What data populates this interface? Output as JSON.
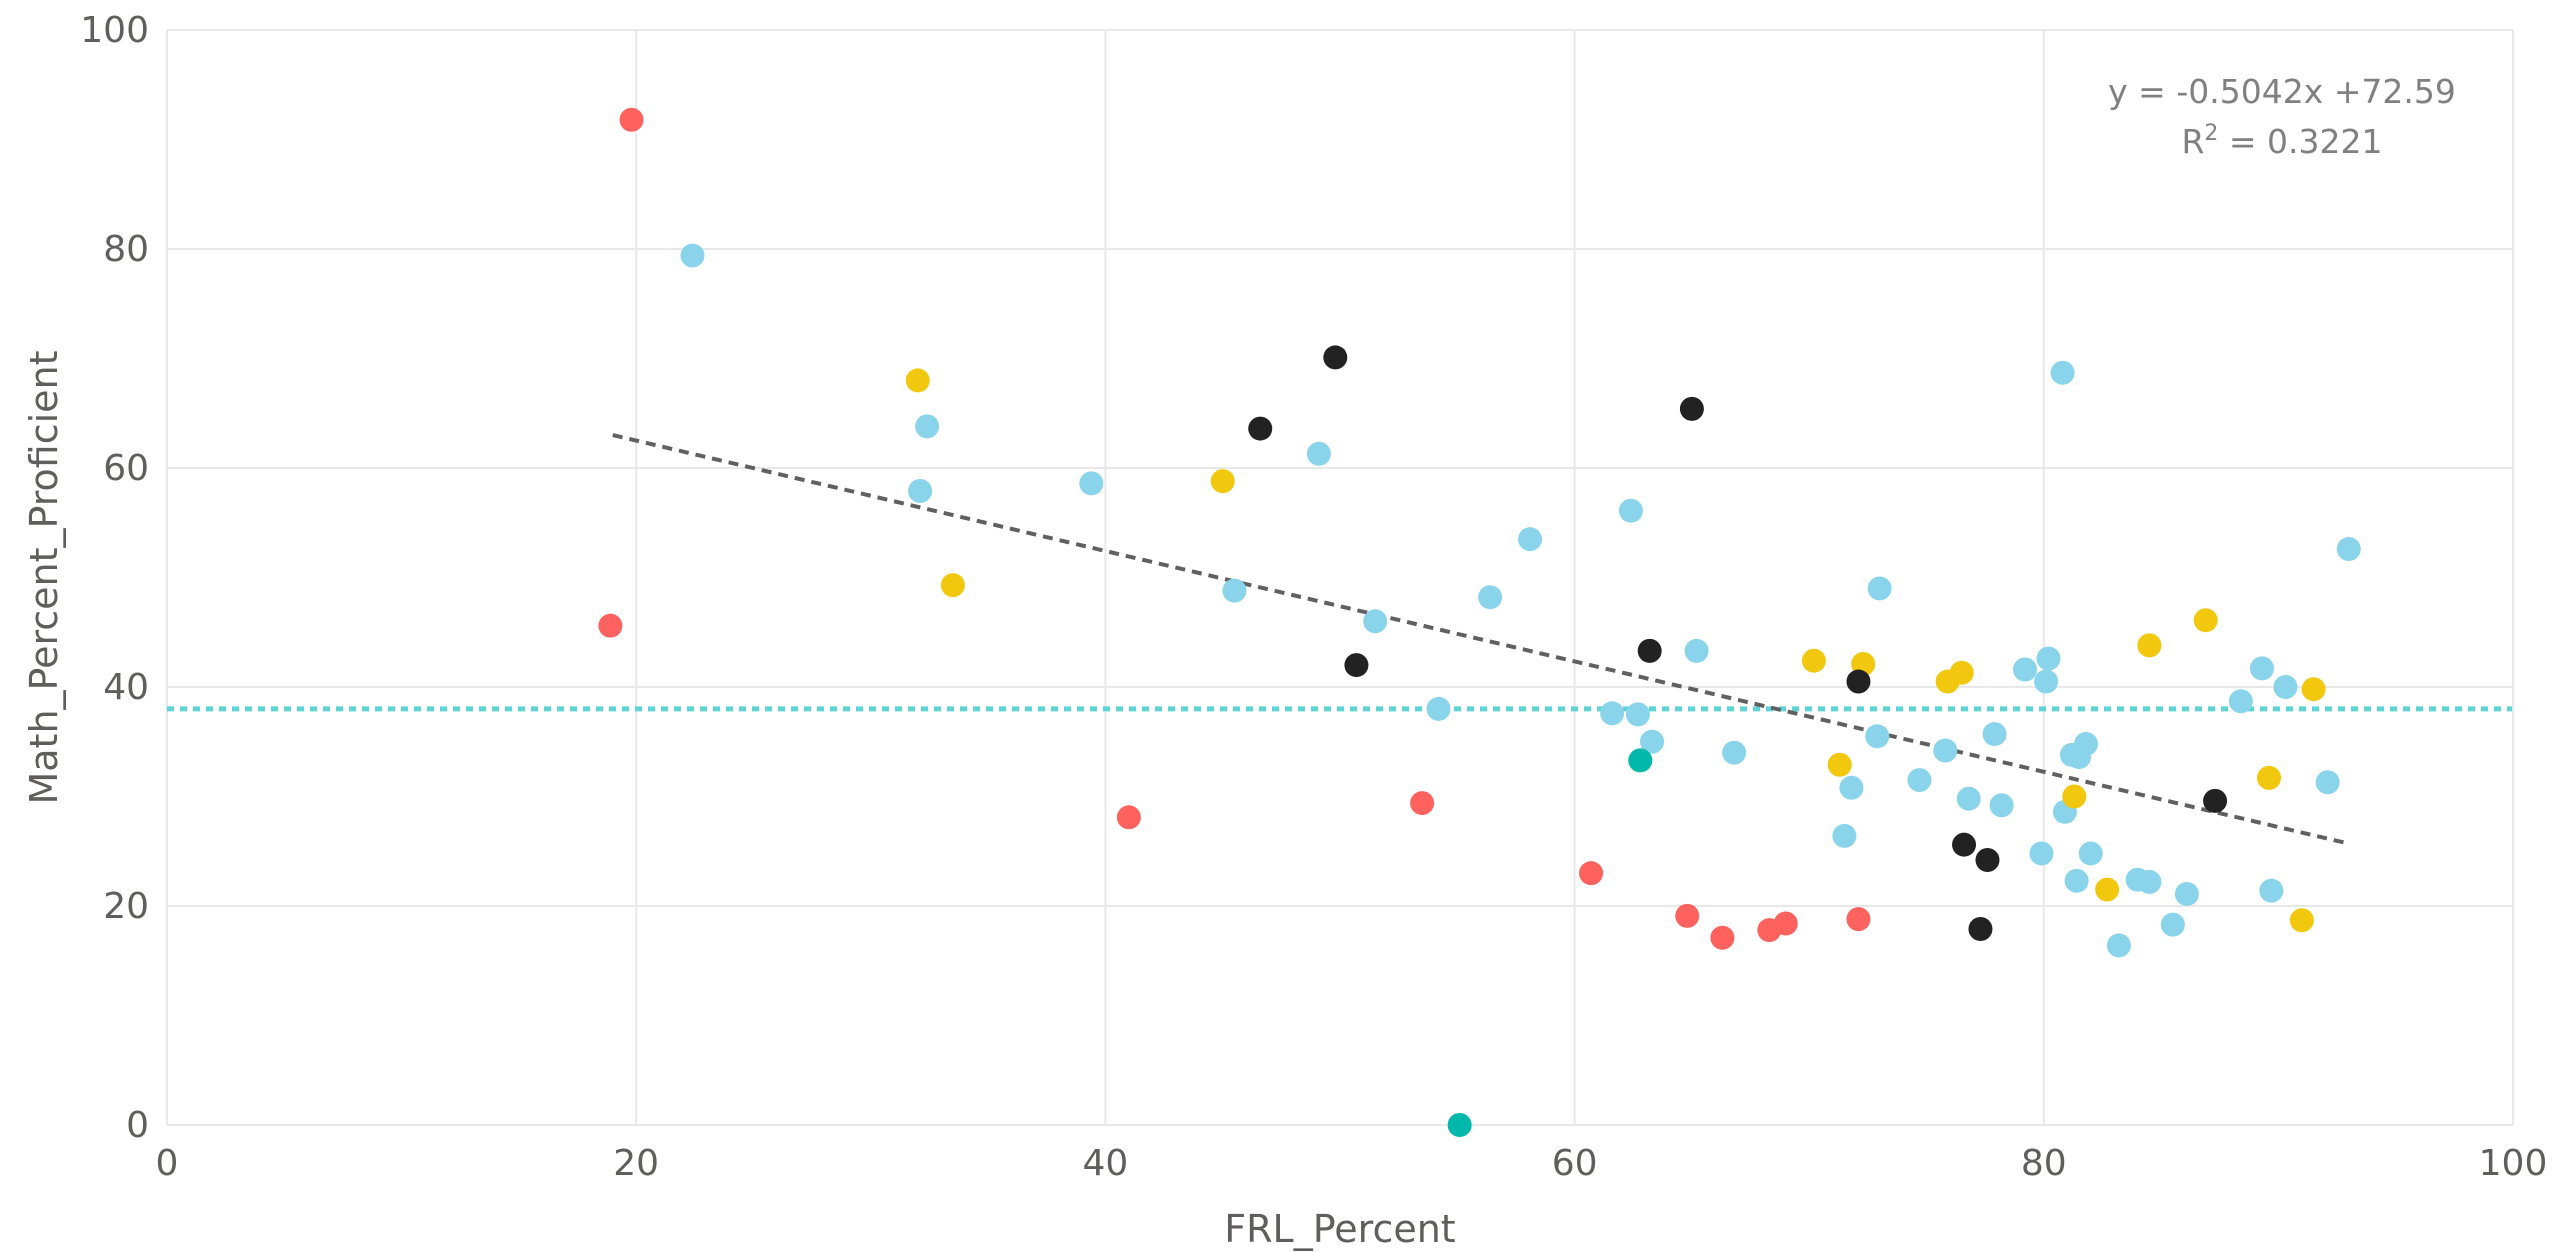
{
  "chart_data": {
    "type": "scatter",
    "xlabel": "FRL_Percent",
    "ylabel": "Math_Percent_Proficient",
    "xlim": [
      0,
      100
    ],
    "ylim": [
      0,
      100
    ],
    "xticks": [
      0,
      20,
      40,
      60,
      80,
      100
    ],
    "yticks": [
      0,
      20,
      40,
      60,
      80,
      100
    ],
    "grid": true,
    "colors": {
      "light_blue": "#8AD4EB",
      "yellow": "#F2C80F",
      "black": "#222222",
      "red": "#FD625E",
      "teal": "#01B8AA",
      "reference_line": "#5ED4D4",
      "trend_line": "#606060",
      "grid": "#E8E8E8"
    },
    "reference_line": {
      "y": 38,
      "style": "dotted"
    },
    "trend_line": {
      "slope": -0.5042,
      "intercept": 72.59,
      "x_range": [
        19,
        93
      ],
      "style": "dashed"
    },
    "annotation": {
      "equation": "y = -0.5042x +72.59",
      "r2_label": "R",
      "r2_sup": "2",
      "r2_value": " = 0.3221"
    },
    "series": [
      {
        "color": "light_blue",
        "points": [
          [
            22.4,
            79.4
          ],
          [
            32.4,
            63.8
          ],
          [
            32.1,
            57.9
          ],
          [
            39.4,
            58.6
          ],
          [
            45.5,
            48.8
          ],
          [
            49.1,
            61.3
          ],
          [
            51.5,
            46.0
          ],
          [
            54.2,
            38.0
          ],
          [
            56.4,
            48.2
          ],
          [
            58.1,
            53.5
          ],
          [
            62.4,
            56.1
          ],
          [
            61.6,
            37.6
          ],
          [
            62.7,
            37.5
          ],
          [
            63.3,
            35.0
          ],
          [
            65.2,
            43.3
          ],
          [
            66.8,
            34.0
          ],
          [
            71.5,
            26.4
          ],
          [
            71.8,
            30.8
          ],
          [
            72.9,
            35.5
          ],
          [
            73.0,
            49.0
          ],
          [
            74.7,
            31.5
          ],
          [
            75.8,
            34.2
          ],
          [
            76.8,
            29.8
          ],
          [
            77.9,
            35.7
          ],
          [
            78.2,
            29.2
          ],
          [
            79.2,
            41.6
          ],
          [
            79.9,
            24.8
          ],
          [
            80.1,
            40.5
          ],
          [
            80.2,
            42.6
          ],
          [
            80.8,
            68.7
          ],
          [
            80.9,
            28.6
          ],
          [
            81.2,
            33.8
          ],
          [
            81.5,
            33.6
          ],
          [
            81.4,
            22.3
          ],
          [
            81.8,
            34.8
          ],
          [
            82.0,
            24.8
          ],
          [
            83.2,
            16.4
          ],
          [
            84.0,
            22.4
          ],
          [
            84.5,
            22.2
          ],
          [
            85.5,
            18.3
          ],
          [
            86.1,
            21.1
          ],
          [
            88.4,
            38.7
          ],
          [
            89.3,
            41.7
          ],
          [
            89.7,
            21.4
          ],
          [
            90.3,
            40.0
          ],
          [
            92.1,
            31.3
          ],
          [
            93.0,
            52.6
          ]
        ]
      },
      {
        "color": "yellow",
        "points": [
          [
            32.0,
            68.0
          ],
          [
            33.5,
            49.3
          ],
          [
            45.0,
            58.8
          ],
          [
            70.2,
            42.4
          ],
          [
            71.3,
            32.9
          ],
          [
            72.3,
            42.1
          ],
          [
            75.9,
            40.5
          ],
          [
            76.5,
            41.3
          ],
          [
            81.3,
            30.0
          ],
          [
            82.7,
            21.5
          ],
          [
            84.5,
            43.8
          ],
          [
            86.9,
            46.1
          ],
          [
            89.6,
            31.7
          ],
          [
            91.0,
            18.7
          ],
          [
            91.5,
            39.8
          ]
        ]
      },
      {
        "color": "black",
        "points": [
          [
            46.6,
            63.6
          ],
          [
            49.8,
            70.1
          ],
          [
            50.7,
            42.0
          ],
          [
            63.2,
            43.3
          ],
          [
            65.0,
            65.4
          ],
          [
            72.1,
            40.5
          ],
          [
            76.6,
            25.6
          ],
          [
            77.6,
            24.2
          ],
          [
            77.3,
            17.9
          ],
          [
            87.3,
            29.6
          ]
        ]
      },
      {
        "color": "red",
        "points": [
          [
            19.8,
            91.8
          ],
          [
            18.9,
            45.6
          ],
          [
            41.0,
            28.1
          ],
          [
            53.5,
            29.4
          ],
          [
            60.7,
            23.0
          ],
          [
            64.8,
            19.1
          ],
          [
            66.3,
            17.1
          ],
          [
            68.3,
            17.8
          ],
          [
            69.0,
            18.4
          ],
          [
            72.1,
            18.8
          ]
        ]
      },
      {
        "color": "teal",
        "points": [
          [
            62.8,
            33.3
          ],
          [
            55.1,
            0.0
          ]
        ]
      }
    ]
  }
}
